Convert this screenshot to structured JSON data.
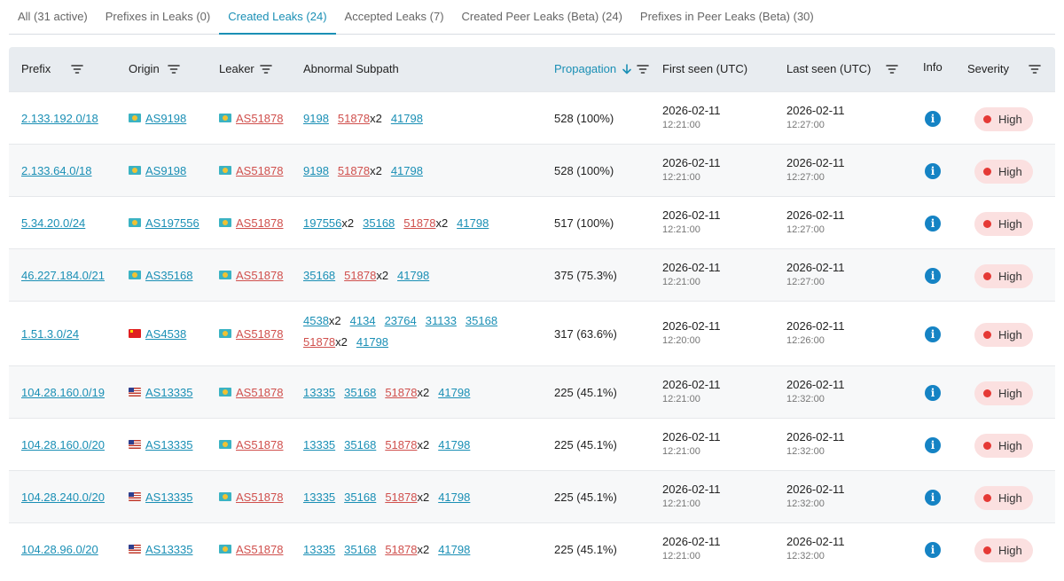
{
  "tabs": [
    {
      "label": "All (31 active)",
      "active": false
    },
    {
      "label": "Prefixes in Leaks (0)",
      "active": false
    },
    {
      "label": "Created Leaks (24)",
      "active": true
    },
    {
      "label": "Accepted Leaks (7)",
      "active": false
    },
    {
      "label": "Created Peer Leaks (Beta) (24)",
      "active": false
    },
    {
      "label": "Prefixes in Peer Leaks (Beta) (30)",
      "active": false
    }
  ],
  "columns": {
    "prefix": "Prefix",
    "origin": "Origin",
    "leaker": "Leaker",
    "path": "Abnormal Subpath",
    "propagation": "Propagation",
    "first_seen": "First seen (UTC)",
    "last_seen": "Last seen (UTC)",
    "info": "Info",
    "severity": "Severity"
  },
  "colors": {
    "accent": "#1a8fb5",
    "leaker": "#d0504d",
    "severity_high": "#e53935"
  },
  "rows": [
    {
      "prefix": "2.133.192.0/18",
      "origin": "AS9198",
      "origin_flag": "kz",
      "leaker": "AS51878",
      "leaker_flag": "kz",
      "path": [
        {
          "asn": "9198",
          "mult": "",
          "leak": false
        },
        {
          "asn": "51878",
          "mult": "x2",
          "leak": true
        },
        {
          "asn": "41798",
          "mult": "",
          "leak": false
        }
      ],
      "propagation": "528 (100%)",
      "first_date": "2026-02-11",
      "first_time": "12:21:00",
      "last_date": "2026-02-11",
      "last_time": "12:27:00",
      "info_icon": "info-icon",
      "severity": "High"
    },
    {
      "prefix": "2.133.64.0/18",
      "origin": "AS9198",
      "origin_flag": "kz",
      "leaker": "AS51878",
      "leaker_flag": "kz",
      "path": [
        {
          "asn": "9198",
          "mult": "",
          "leak": false
        },
        {
          "asn": "51878",
          "mult": "x2",
          "leak": true
        },
        {
          "asn": "41798",
          "mult": "",
          "leak": false
        }
      ],
      "propagation": "528 (100%)",
      "first_date": "2026-02-11",
      "first_time": "12:21:00",
      "last_date": "2026-02-11",
      "last_time": "12:27:00",
      "info_icon": "info-icon",
      "severity": "High"
    },
    {
      "prefix": "5.34.20.0/24",
      "origin": "AS197556",
      "origin_flag": "kz",
      "leaker": "AS51878",
      "leaker_flag": "kz",
      "path": [
        {
          "asn": "197556",
          "mult": "x2",
          "leak": false
        },
        {
          "asn": "35168",
          "mult": "",
          "leak": false
        },
        {
          "asn": "51878",
          "mult": "x2",
          "leak": true
        },
        {
          "asn": "41798",
          "mult": "",
          "leak": false
        }
      ],
      "propagation": "517 (100%)",
      "first_date": "2026-02-11",
      "first_time": "12:21:00",
      "last_date": "2026-02-11",
      "last_time": "12:27:00",
      "info_icon": "info-icon",
      "severity": "High"
    },
    {
      "prefix": "46.227.184.0/21",
      "origin": "AS35168",
      "origin_flag": "kz",
      "leaker": "AS51878",
      "leaker_flag": "kz",
      "path": [
        {
          "asn": "35168",
          "mult": "",
          "leak": false
        },
        {
          "asn": "51878",
          "mult": "x2",
          "leak": true
        },
        {
          "asn": "41798",
          "mult": "",
          "leak": false
        }
      ],
      "propagation": "375 (75.3%)",
      "first_date": "2026-02-11",
      "first_time": "12:21:00",
      "last_date": "2026-02-11",
      "last_time": "12:27:00",
      "info_icon": "info-icon",
      "severity": "High"
    },
    {
      "prefix": "1.51.3.0/24",
      "origin": "AS4538",
      "origin_flag": "cn",
      "leaker": "AS51878",
      "leaker_flag": "kz",
      "path": [
        {
          "asn": "4538",
          "mult": "x2",
          "leak": false
        },
        {
          "asn": "4134",
          "mult": "",
          "leak": false
        },
        {
          "asn": "23764",
          "mult": "",
          "leak": false
        },
        {
          "asn": "31133",
          "mult": "",
          "leak": false
        },
        {
          "asn": "35168",
          "mult": "",
          "leak": false
        },
        {
          "asn": "51878",
          "mult": "x2",
          "leak": true
        },
        {
          "asn": "41798",
          "mult": "",
          "leak": false
        }
      ],
      "propagation": "317 (63.6%)",
      "first_date": "2026-02-11",
      "first_time": "12:20:00",
      "last_date": "2026-02-11",
      "last_time": "12:26:00",
      "info_icon": "info-icon",
      "severity": "High"
    },
    {
      "prefix": "104.28.160.0/19",
      "origin": "AS13335",
      "origin_flag": "us",
      "leaker": "AS51878",
      "leaker_flag": "kz",
      "path": [
        {
          "asn": "13335",
          "mult": "",
          "leak": false
        },
        {
          "asn": "35168",
          "mult": "",
          "leak": false
        },
        {
          "asn": "51878",
          "mult": "x2",
          "leak": true
        },
        {
          "asn": "41798",
          "mult": "",
          "leak": false
        }
      ],
      "propagation": "225 (45.1%)",
      "first_date": "2026-02-11",
      "first_time": "12:21:00",
      "last_date": "2026-02-11",
      "last_time": "12:32:00",
      "info_icon": "info-icon",
      "severity": "High"
    },
    {
      "prefix": "104.28.160.0/20",
      "origin": "AS13335",
      "origin_flag": "us",
      "leaker": "AS51878",
      "leaker_flag": "kz",
      "path": [
        {
          "asn": "13335",
          "mult": "",
          "leak": false
        },
        {
          "asn": "35168",
          "mult": "",
          "leak": false
        },
        {
          "asn": "51878",
          "mult": "x2",
          "leak": true
        },
        {
          "asn": "41798",
          "mult": "",
          "leak": false
        }
      ],
      "propagation": "225 (45.1%)",
      "first_date": "2026-02-11",
      "first_time": "12:21:00",
      "last_date": "2026-02-11",
      "last_time": "12:32:00",
      "info_icon": "info-icon",
      "severity": "High"
    },
    {
      "prefix": "104.28.240.0/20",
      "origin": "AS13335",
      "origin_flag": "us",
      "leaker": "AS51878",
      "leaker_flag": "kz",
      "path": [
        {
          "asn": "13335",
          "mult": "",
          "leak": false
        },
        {
          "asn": "35168",
          "mult": "",
          "leak": false
        },
        {
          "asn": "51878",
          "mult": "x2",
          "leak": true
        },
        {
          "asn": "41798",
          "mult": "",
          "leak": false
        }
      ],
      "propagation": "225 (45.1%)",
      "first_date": "2026-02-11",
      "first_time": "12:21:00",
      "last_date": "2026-02-11",
      "last_time": "12:32:00",
      "info_icon": "info-icon",
      "severity": "High"
    },
    {
      "prefix": "104.28.96.0/20",
      "origin": "AS13335",
      "origin_flag": "us",
      "leaker": "AS51878",
      "leaker_flag": "kz",
      "path": [
        {
          "asn": "13335",
          "mult": "",
          "leak": false
        },
        {
          "asn": "35168",
          "mult": "",
          "leak": false
        },
        {
          "asn": "51878",
          "mult": "x2",
          "leak": true
        },
        {
          "asn": "41798",
          "mult": "",
          "leak": false
        }
      ],
      "propagation": "225 (45.1%)",
      "first_date": "2026-02-11",
      "first_time": "12:21:00",
      "last_date": "2026-02-11",
      "last_time": "12:32:00",
      "info_icon": "info-icon",
      "severity": "High"
    }
  ]
}
